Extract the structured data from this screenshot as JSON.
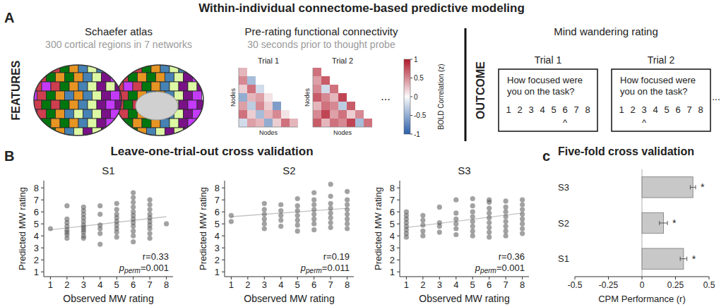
{
  "figure_title": "Within-individual connectome-based predictive modeling",
  "panel_labels": [
    "A",
    "B",
    "c"
  ],
  "panel_a": {
    "features_label": "FEATURES",
    "atlas": {
      "title": "Schaefer atlas",
      "subtitle": "300 cortical regions in 7 networks"
    },
    "connectivity": {
      "title": "Pre-rating functional connectivity",
      "subtitle": "30 seconds prior to thought probe",
      "node_label": "Nodes",
      "ellipsis": "...",
      "matrices": [
        {
          "label": "Trial 1",
          "cells": [
            [
              0.3
            ],
            [
              0.5,
              -0.4
            ],
            [
              0.2,
              0.6,
              -0.2
            ],
            [
              -0.5,
              0.3,
              0.4,
              0.1
            ],
            [
              0.4,
              -0.3,
              0.5,
              0.2,
              -0.6
            ],
            [
              0.6,
              0.2,
              -0.4,
              0.3,
              0.5,
              0.1
            ],
            [
              -0.2,
              0.4,
              0.3,
              -0.5,
              0.2,
              0.6,
              0.3
            ]
          ]
        },
        {
          "label": "Trial 2",
          "cells": [
            [
              0.6
            ],
            [
              0.4,
              0.7
            ],
            [
              0.5,
              -0.2,
              0.6
            ],
            [
              0.7,
              0.5,
              0.3,
              0.8
            ],
            [
              0.3,
              0.6,
              0.5,
              -0.3,
              0.7
            ],
            [
              0.5,
              0.8,
              0.4,
              0.6,
              0.2,
              0.5
            ],
            [
              0.7,
              0.3,
              0.6,
              0.5,
              0.8,
              -0.4,
              0.6
            ]
          ]
        }
      ],
      "colorbar": {
        "label": "BOLD Correlation (z)",
        "range": [
          -1,
          1
        ],
        "ticks": [
          1,
          0.5,
          0,
          -0.5,
          -1
        ]
      }
    },
    "outcome": {
      "label": "OUTCOME",
      "title": "Mind wandering rating",
      "ellipsis": "...",
      "caret": "^",
      "trials": [
        {
          "label": "Trial 1",
          "question": "How focused were you on the task?",
          "scale": [
            1,
            2,
            3,
            4,
            5,
            6,
            7,
            8
          ],
          "selected": 6
        },
        {
          "label": "Trial 2",
          "question": "How focused were you on the task?",
          "scale": [
            1,
            2,
            3,
            4,
            5,
            6,
            7,
            8
          ],
          "selected": 3
        }
      ]
    }
  },
  "panel_b": {
    "title": "Leave-one-trial-out cross validation"
  },
  "chart_data": [
    {
      "type": "scatter",
      "title": "S1",
      "xlabel": "Observed MW rating",
      "ylabel": "Predicted MW rating",
      "xlim": [
        0.6,
        8.4
      ],
      "ylim": [
        0.6,
        8.6
      ],
      "xticks": [
        1,
        2,
        3,
        4,
        5,
        6,
        7,
        8
      ],
      "yticks": [
        1,
        2,
        3,
        4,
        5,
        6,
        7,
        8
      ],
      "series": [
        {
          "type": "scatter",
          "color": "#555555",
          "marker": "circle",
          "x": [
            1,
            2,
            2,
            2,
            2,
            2,
            2,
            2,
            2,
            3,
            3,
            3,
            3,
            3,
            3,
            3,
            3,
            3,
            3,
            3,
            4,
            4,
            4,
            4,
            4,
            4,
            5,
            5,
            5,
            5,
            5,
            5,
            5,
            5,
            5,
            6,
            6,
            6,
            6,
            6,
            6,
            6,
            6,
            6,
            6,
            6,
            6,
            7,
            7,
            7,
            7,
            7,
            7,
            7,
            7,
            7,
            7,
            8
          ],
          "values": [
            4.6,
            3.8,
            4.1,
            4.3,
            4.5,
            4.8,
            5.1,
            5.4,
            6.5,
            3.8,
            4.0,
            4.3,
            4.5,
            4.7,
            4.9,
            5.2,
            5.5,
            5.8,
            6.1,
            6.4,
            3.3,
            4.2,
            4.6,
            4.9,
            5.8,
            6.5,
            3.9,
            4.3,
            4.6,
            4.9,
            5.2,
            5.5,
            5.8,
            6.2,
            6.7,
            3.5,
            4.0,
            4.4,
            4.8,
            5.1,
            5.4,
            5.7,
            6.0,
            6.4,
            6.8,
            7.2,
            7.6,
            3.8,
            4.2,
            4.6,
            4.9,
            5.2,
            5.5,
            5.8,
            6.2,
            6.6,
            7.0,
            5.0
          ]
        },
        {
          "type": "line",
          "color": "#c4c4c4",
          "line_style": "solid",
          "x": [
            1,
            8
          ],
          "values": [
            4.5,
            5.6
          ]
        }
      ],
      "annotations": {
        "r": "r=0.33",
        "p": "p",
        "p_sub": "perm",
        "p_rest": "=0.001"
      }
    },
    {
      "type": "scatter",
      "title": "S2",
      "xlabel": "Observed MW rating",
      "ylabel": "Predicted MW rating",
      "xlim": [
        0.6,
        8.4
      ],
      "ylim": [
        0.6,
        8.6
      ],
      "xticks": [
        1,
        2,
        3,
        4,
        5,
        6,
        7,
        8
      ],
      "yticks": [
        1,
        2,
        3,
        4,
        5,
        6,
        7,
        8
      ],
      "series": [
        {
          "type": "scatter",
          "color": "#555555",
          "marker": "circle",
          "x": [
            1,
            1,
            3,
            3,
            3,
            3,
            3,
            3,
            4,
            4,
            4,
            4,
            4,
            5,
            5,
            5,
            5,
            5,
            5,
            5,
            6,
            6,
            6,
            6,
            6,
            6,
            6,
            6,
            7,
            7,
            7,
            7,
            7,
            7,
            7,
            7,
            8,
            8,
            8,
            8,
            8,
            8,
            8,
            8
          ],
          "values": [
            5.2,
            5.7,
            4.6,
            5.0,
            5.4,
            5.8,
            6.2,
            6.7,
            4.8,
            5.3,
            5.7,
            6.1,
            6.6,
            4.4,
            4.9,
            5.3,
            5.7,
            6.1,
            6.5,
            7.1,
            4.5,
            5.0,
            5.4,
            5.8,
            6.2,
            6.6,
            7.0,
            7.6,
            4.7,
            5.1,
            5.5,
            5.9,
            6.3,
            6.7,
            7.3,
            8.3,
            4.6,
            5.0,
            5.4,
            5.8,
            6.2,
            6.6,
            7.0,
            7.7
          ]
        },
        {
          "type": "line",
          "color": "#c4c4c4",
          "line_style": "solid",
          "x": [
            1,
            8
          ],
          "values": [
            5.6,
            6.3
          ]
        }
      ],
      "annotations": {
        "r": "r=0.19",
        "p": "p",
        "p_sub": "perm",
        "p_rest": "=0.011"
      }
    },
    {
      "type": "scatter",
      "title": "S3",
      "xlabel": "Observed MW rating",
      "ylabel": "Predicted MW rating",
      "xlim": [
        0.6,
        8.4
      ],
      "ylim": [
        0.6,
        8.6
      ],
      "xticks": [
        1,
        2,
        3,
        4,
        5,
        6,
        7,
        8
      ],
      "yticks": [
        1,
        2,
        3,
        4,
        5,
        6,
        7,
        8
      ],
      "series": [
        {
          "type": "scatter",
          "color": "#555555",
          "marker": "circle",
          "x": [
            1,
            1,
            1,
            1,
            1,
            1,
            1,
            1,
            2,
            2,
            2,
            2,
            2,
            3,
            3,
            3,
            3,
            4,
            4,
            4,
            4,
            4,
            4,
            5,
            5,
            5,
            5,
            5,
            5,
            5,
            5,
            6,
            6,
            6,
            6,
            6,
            6,
            6,
            6,
            6,
            7,
            7,
            7,
            7,
            7,
            7,
            7,
            7,
            8,
            8,
            8,
            8,
            8,
            8,
            8,
            8
          ],
          "values": [
            3.9,
            4.2,
            4.5,
            4.8,
            5.1,
            5.4,
            5.7,
            6.0,
            4.0,
            4.4,
            4.9,
            5.3,
            5.7,
            4.3,
            4.8,
            5.1,
            6.4,
            4.1,
            4.6,
            5.0,
            5.4,
            5.9,
            7.0,
            4.0,
            4.4,
            4.8,
            5.2,
            5.6,
            6.0,
            6.5,
            7.1,
            3.9,
            4.3,
            4.7,
            5.1,
            5.5,
            5.9,
            6.3,
            6.8,
            7.0,
            4.0,
            4.4,
            4.8,
            5.2,
            5.6,
            6.0,
            6.4,
            6.9,
            4.2,
            4.6,
            5.0,
            5.4,
            5.8,
            6.2,
            6.6,
            7.0
          ]
        },
        {
          "type": "line",
          "color": "#c4c4c4",
          "line_style": "solid",
          "x": [
            1,
            8
          ],
          "values": [
            4.7,
            5.9
          ]
        }
      ],
      "annotations": {
        "r": "r=0.36",
        "p": "p",
        "p_sub": "perm",
        "p_rest": "=0.001"
      }
    },
    {
      "type": "bar",
      "orientation": "horizontal",
      "title": "Five-fold cross validation",
      "xlabel": "CPM Performance (r)",
      "categories": [
        "S3",
        "S2",
        "S1"
      ],
      "values": [
        0.38,
        0.16,
        0.31
      ],
      "errors": [
        0.02,
        0.03,
        0.025
      ],
      "significance": [
        "*",
        "*",
        "*"
      ],
      "color": "#c8c8c8",
      "xlim": [
        -0.5,
        0.5
      ],
      "xticks": [
        -0.5,
        -0.25,
        0,
        0.25,
        0.5
      ]
    }
  ]
}
